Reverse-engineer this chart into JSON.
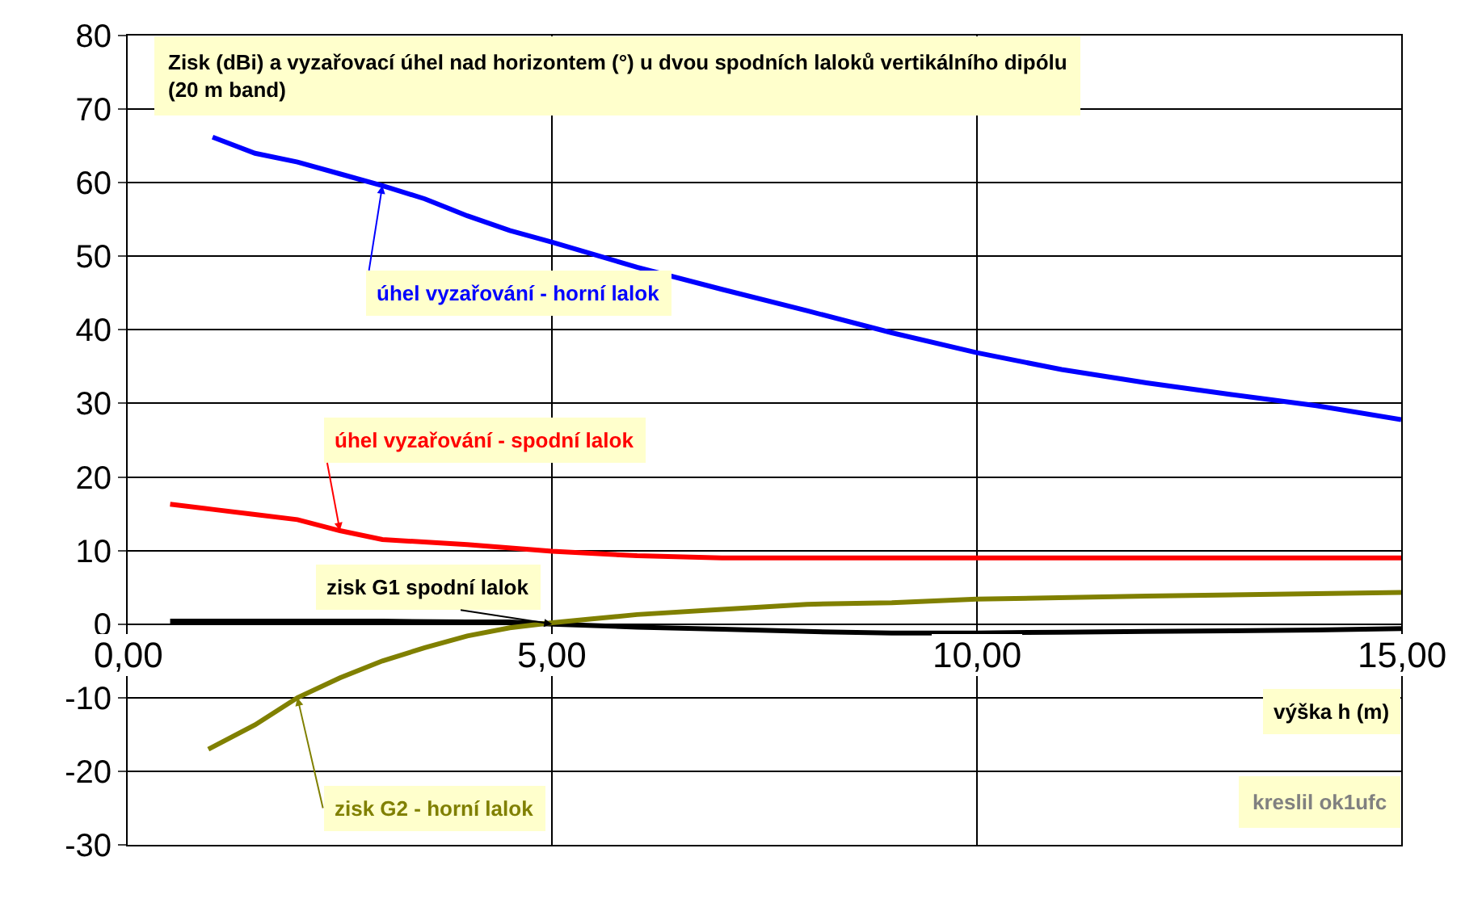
{
  "chart_data": {
    "type": "line",
    "title": "Zisk (dBi) a vyzařovací úhel nad horizontem (°) u dvou spodních laloků vertikálního dipólu\n(20 m band)",
    "xlabel": "výška h (m)",
    "xlim": [
      0,
      15
    ],
    "xticks": [
      {
        "value": 0,
        "label": "0,00"
      },
      {
        "value": 5,
        "label": "5,00"
      },
      {
        "value": 10,
        "label": "10,00"
      },
      {
        "value": 15,
        "label": "15,00"
      }
    ],
    "ylim": [
      -30,
      80
    ],
    "yticks": [
      -30,
      -20,
      -10,
      0,
      10,
      20,
      30,
      40,
      50,
      60,
      70,
      80
    ],
    "grid": true,
    "legend": false,
    "marker": "none",
    "line_style": "solid",
    "series": [
      {
        "name": "úhel vyzařování - horní lalok",
        "color": "#0000ff",
        "x": [
          1,
          1.5,
          2,
          2.5,
          3,
          3.5,
          4,
          4.5,
          5,
          6,
          7,
          8,
          9,
          10,
          11,
          12,
          13,
          14,
          15
        ],
        "values": [
          66.2,
          64,
          62.8,
          61.2,
          59.6,
          57.8,
          55.5,
          53.5,
          51.9,
          48.5,
          45.5,
          42.6,
          39.6,
          36.9,
          34.6,
          32.8,
          31.2,
          29.7,
          27.8
        ]
      },
      {
        "name": "úhel vyzařování - spodní lalok",
        "color": "#ff0000",
        "x": [
          0.5,
          1,
          1.5,
          2,
          2.5,
          3,
          4,
          5,
          6,
          7,
          8,
          10,
          12,
          15
        ],
        "values": [
          16.3,
          15.6,
          14.9,
          14.2,
          12.7,
          11.5,
          10.8,
          9.9,
          9.3,
          9.0,
          9.0,
          9.0,
          9.0,
          9.0
        ]
      },
      {
        "name": "zisk G1 spodní lalok",
        "color": "#000000",
        "x": [
          0.5,
          1,
          2,
          3,
          4,
          4.5,
          5,
          6,
          7,
          8,
          9,
          10,
          11,
          12,
          13,
          14,
          15
        ],
        "values": [
          0.4,
          0.4,
          0.4,
          0.4,
          0.3,
          0.3,
          0,
          -0.4,
          -0.7,
          -1.0,
          -1.2,
          -1.2,
          -1.1,
          -1.0,
          -0.9,
          -0.8,
          -0.6
        ]
      },
      {
        "name": "zisk G2 - horní lalok",
        "color": "#808000",
        "x": [
          0.95,
          1.5,
          2,
          2.5,
          3,
          3.5,
          4,
          4.5,
          5,
          6,
          7,
          8,
          9,
          10,
          12,
          15
        ],
        "values": [
          -17,
          -13.7,
          -10,
          -7.3,
          -5,
          -3.2,
          -1.6,
          -0.5,
          0.2,
          1.3,
          2,
          2.7,
          2.9,
          3.4,
          3.8,
          4.3
        ]
      }
    ],
    "annotations": [
      "kreslil ok1ufc"
    ]
  }
}
